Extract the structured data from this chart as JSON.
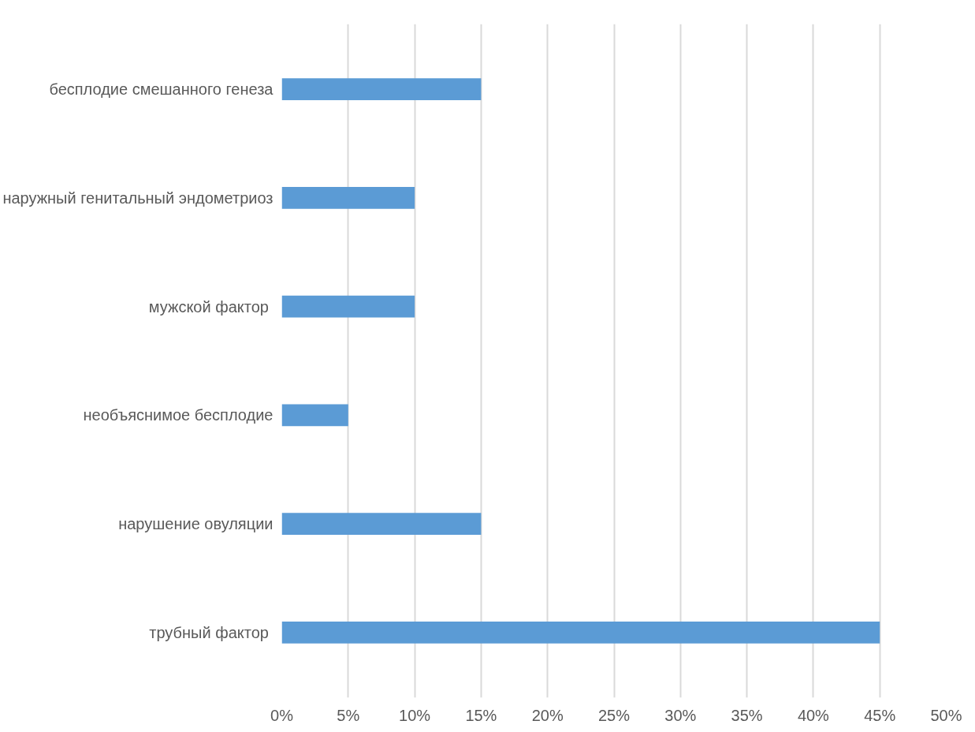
{
  "chart_data": {
    "type": "bar",
    "orientation": "horizontal",
    "categories": [
      "бесплодие смешанного генеза",
      "наружный генитальный эндометриоз",
      "мужской фактор ",
      "необъяснимое бесплодие",
      "нарушение овуляции",
      "трубный фактор "
    ],
    "values": [
      15,
      10,
      10,
      5,
      15,
      45
    ],
    "color": "#5b9bd5",
    "xlim": [
      0,
      50
    ],
    "xticks": [
      {
        "value": 0,
        "label": "0%"
      },
      {
        "value": 5,
        "label": "5%"
      },
      {
        "value": 10,
        "label": "10%"
      },
      {
        "value": 15,
        "label": "15%"
      },
      {
        "value": 20,
        "label": "20%"
      },
      {
        "value": 25,
        "label": "25%"
      },
      {
        "value": 30,
        "label": "30%"
      },
      {
        "value": 35,
        "label": "35%"
      },
      {
        "value": 40,
        "label": "40%"
      },
      {
        "value": 45,
        "label": "45%"
      },
      {
        "value": 50,
        "label": "50%"
      }
    ],
    "grid": "x"
  }
}
